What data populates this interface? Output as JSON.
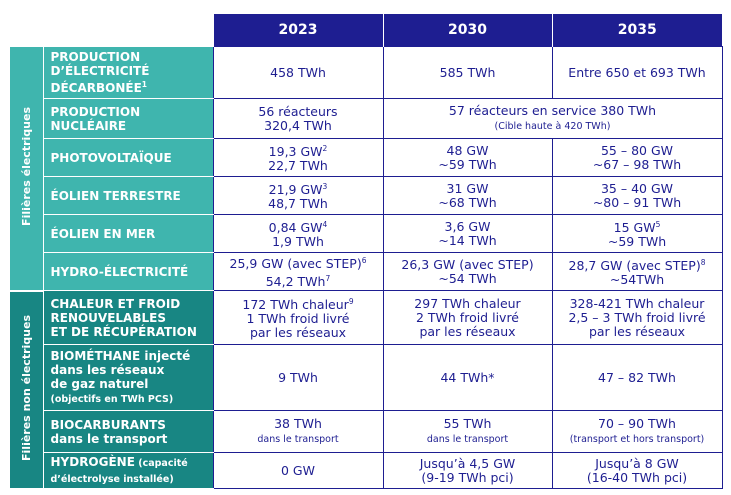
{
  "header": {
    "columns": [
      "2023",
      "2030",
      "2035"
    ]
  },
  "groups": [
    {
      "label": "Filières électriques",
      "rows": [
        {
          "label": [
            "PRODUCTION",
            "D’ÉLECTRICITÉ",
            [
              "DÉCARBONÉE",
              {
                "t": "1",
                "sup": true
              }
            ]
          ],
          "cells": [
            [
              "458 TWh"
            ],
            [
              "585 TWh"
            ],
            [
              "Entre 650 et 693 TWh"
            ]
          ]
        },
        {
          "label": [
            "PRODUCTION",
            "NUCLÉAIRE"
          ],
          "cells": [
            [
              "56 réacteurs",
              "320,4 TWh"
            ],
            [
              "57 réacteurs en service 380 TWh",
              [
                {
                  "t": "(Cible haute à 420 TWh)",
                  "small": true
                }
              ]
            ]
          ]
        },
        {
          "label": [
            "PHOTOVOLTAÏQUE"
          ],
          "cells": [
            [
              [
                "19,3 GW",
                {
                  "t": "2",
                  "sup": true
                }
              ],
              "22,7 TWh"
            ],
            [
              "48 GW",
              "~59 TWh"
            ],
            [
              "55 – 80 GW",
              "~67 – 98 TWh"
            ]
          ]
        },
        {
          "label": [
            "ÉOLIEN TERRESTRE"
          ],
          "cells": [
            [
              [
                "21,9 GW",
                {
                  "t": "3",
                  "sup": true
                }
              ],
              "48,7 TWh"
            ],
            [
              "31 GW",
              "~68 TWh"
            ],
            [
              "35 – 40 GW",
              "~80 – 91 TWh"
            ]
          ]
        },
        {
          "label": [
            "ÉOLIEN EN MER"
          ],
          "cells": [
            [
              [
                "0,84 GW",
                {
                  "t": "4",
                  "sup": true
                }
              ],
              "1,9 TWh"
            ],
            [
              "3,6 GW",
              "~14 TWh"
            ],
            [
              [
                "15 GW",
                {
                  "t": "5",
                  "sup": true
                }
              ],
              "~59 TWh"
            ]
          ]
        },
        {
          "label": [
            "HYDRO-ÉLECTRICITÉ"
          ],
          "cells": [
            [
              [
                "25,9 GW (avec STEP)",
                {
                  "t": "6",
                  "sup": true
                }
              ],
              [
                "54,2 TWh",
                {
                  "t": "7",
                  "sup": true
                }
              ]
            ],
            [
              "26,3 GW (avec STEP)",
              "~54 TWh"
            ],
            [
              [
                "28,7 GW (avec STEP)",
                {
                  "t": "8",
                  "sup": true
                }
              ],
              "~54TWh"
            ]
          ]
        }
      ]
    },
    {
      "label": "Filières non électriques",
      "rows": [
        {
          "label": [
            "CHALEUR ET FROID",
            "RENOUVELABLES",
            "ET DE RÉCUPÉRATION"
          ],
          "cells": [
            [
              [
                "172 TWh chaleur",
                {
                  "t": "9",
                  "sup": true
                }
              ],
              "1 TWh froid livré",
              "par les réseaux"
            ],
            [
              "297 TWh chaleur",
              "2 TWh froid livré",
              "par les réseaux"
            ],
            [
              "328-421 TWh chaleur",
              "2,5 – 3 TWh froid livré",
              "par les réseaux"
            ]
          ]
        },
        {
          "label": [
            [
              "BIOMÉTHANE",
              " injecté"
            ],
            "dans les réseaux",
            "de gaz naturel",
            [
              {
                "t": "(objectifs en TWh PCS)",
                "small": true
              }
            ]
          ],
          "cells": [
            [
              "9 TWh"
            ],
            [
              "44 TWh*"
            ],
            [
              "47 – 82 TWh"
            ]
          ]
        },
        {
          "label": [
            "BIOCARBURANTS",
            "dans le transport"
          ],
          "cells": [
            [
              "38 TWh",
              [
                {
                  "t": "dans le transport",
                  "small": true
                }
              ]
            ],
            [
              "55 TWh",
              [
                {
                  "t": "dans le transport",
                  "small": true
                }
              ]
            ],
            [
              "70 – 90 TWh",
              [
                {
                  "t": "(transport et hors transport)",
                  "small": true
                }
              ]
            ]
          ]
        },
        {
          "label": [
            [
              "HYDROGÈNE",
              {
                "t": " (capacité",
                "small": true
              }
            ],
            [
              {
                "t": "d’électrolyse installée)",
                "small": true
              }
            ]
          ],
          "cells": [
            [
              "0 GW"
            ],
            [
              "Jusqu’à 4,5 GW",
              "(9-19 TWh pci)"
            ],
            [
              "Jusqu’à 8 GW",
              "(16-40 TWh pci)"
            ]
          ]
        }
      ]
    }
  ]
}
